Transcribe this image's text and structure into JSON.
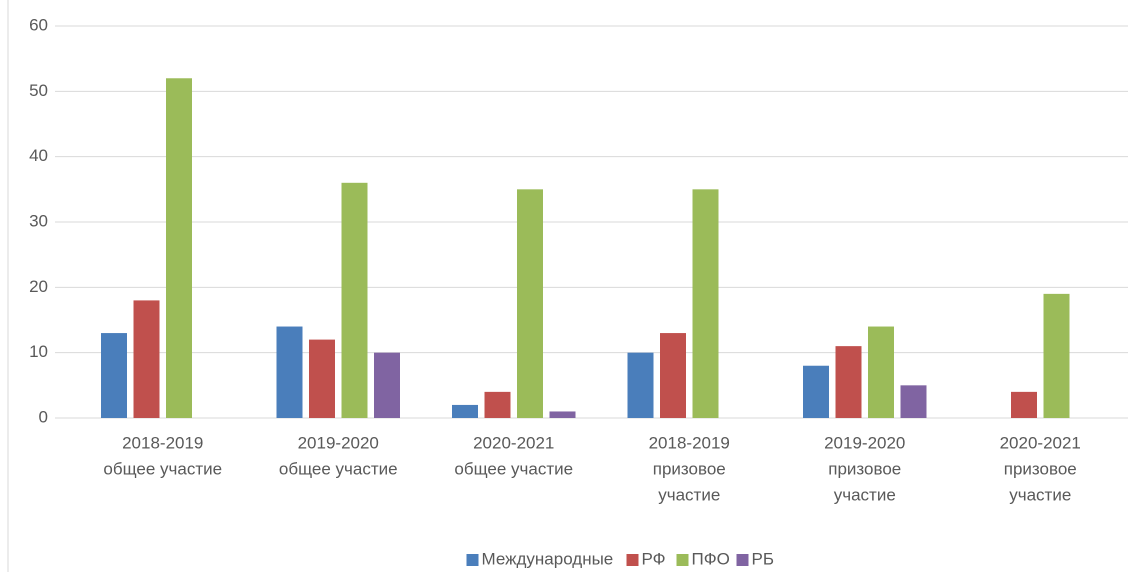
{
  "chart_data": {
    "type": "bar",
    "categories": [
      [
        "2018-2019",
        "общее участие"
      ],
      [
        "2019-2020",
        "общее участие"
      ],
      [
        "2020-2021",
        "общее участие"
      ],
      [
        "2018-2019",
        "призовое",
        "участие"
      ],
      [
        "2019-2020",
        "призовое",
        "участие"
      ],
      [
        "2020-2021",
        "призовое",
        "участие"
      ]
    ],
    "series": [
      {
        "name": "Международные",
        "color": "#4a7ebb",
        "values": [
          13,
          14,
          2,
          10,
          8,
          0
        ]
      },
      {
        "name": "РФ",
        "color": "#c0504d",
        "values": [
          18,
          12,
          4,
          13,
          11,
          4
        ]
      },
      {
        "name": "ПФО",
        "color": "#9bbb59",
        "values": [
          52,
          36,
          35,
          35,
          14,
          19
        ]
      },
      {
        "name": "РБ",
        "color": "#8064a2",
        "values": [
          0,
          10,
          1,
          0,
          5,
          0
        ]
      }
    ],
    "ylim": [
      0,
      60
    ],
    "yticks": [
      0,
      10,
      20,
      30,
      40,
      50,
      60
    ],
    "grid": true,
    "legend": "bottom"
  }
}
